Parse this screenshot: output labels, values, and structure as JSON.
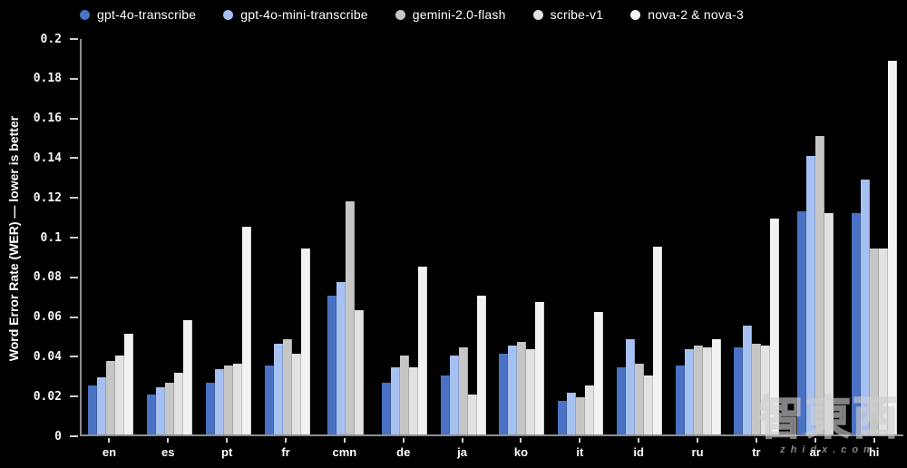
{
  "chart_data": {
    "type": "bar",
    "title": "",
    "xlabel": "",
    "ylabel": "Word Error Rate (WER) — lower is better",
    "ylim": [
      0,
      0.2
    ],
    "grid": false,
    "legend_position": "top",
    "background": "#000000",
    "categories": [
      "en",
      "es",
      "pt",
      "fr",
      "cmn",
      "de",
      "ja",
      "ko",
      "it",
      "id",
      "ru",
      "tr",
      "ar",
      "hi"
    ],
    "y_ticks": [
      "0.2",
      "0.18",
      "0.16",
      "0.14",
      "0.12",
      "0.1",
      "0.08",
      "0.06",
      "0.04",
      "0.02",
      "0"
    ],
    "series": [
      {
        "name": "gpt-4o-transcribe",
        "color": "#4a72c4",
        "values": [
          0.025,
          0.02,
          0.026,
          0.035,
          0.07,
          0.026,
          0.03,
          0.041,
          0.017,
          0.034,
          0.035,
          0.044,
          0.113,
          0.112
        ]
      },
      {
        "name": "gpt-4o-mini-transcribe",
        "color": "#a6c0f2",
        "values": [
          0.029,
          0.024,
          0.033,
          0.046,
          0.077,
          0.034,
          0.04,
          0.045,
          0.021,
          0.048,
          0.043,
          0.055,
          0.141,
          0.129
        ]
      },
      {
        "name": "gemini-2.0-flash",
        "color": "#c6c6c6",
        "values": [
          0.037,
          0.026,
          0.035,
          0.048,
          0.118,
          0.04,
          0.044,
          0.047,
          0.019,
          0.036,
          0.045,
          0.046,
          0.151,
          0.094
        ]
      },
      {
        "name": "scribe-v1",
        "color": "#e2e2e2",
        "values": [
          0.04,
          0.031,
          0.036,
          0.041,
          0.063,
          0.034,
          0.02,
          0.043,
          0.025,
          0.03,
          0.044,
          0.045,
          0.112,
          0.094
        ]
      },
      {
        "name": "nova-2 & nova-3",
        "color": "#f2f2f2",
        "values": [
          0.051,
          0.058,
          0.105,
          0.094,
          null,
          0.085,
          0.07,
          0.067,
          0.062,
          0.095,
          0.048,
          0.109,
          null,
          0.189
        ]
      }
    ]
  },
  "watermark": {
    "logo_text": "智東西",
    "site_text": "zhidx.com"
  }
}
